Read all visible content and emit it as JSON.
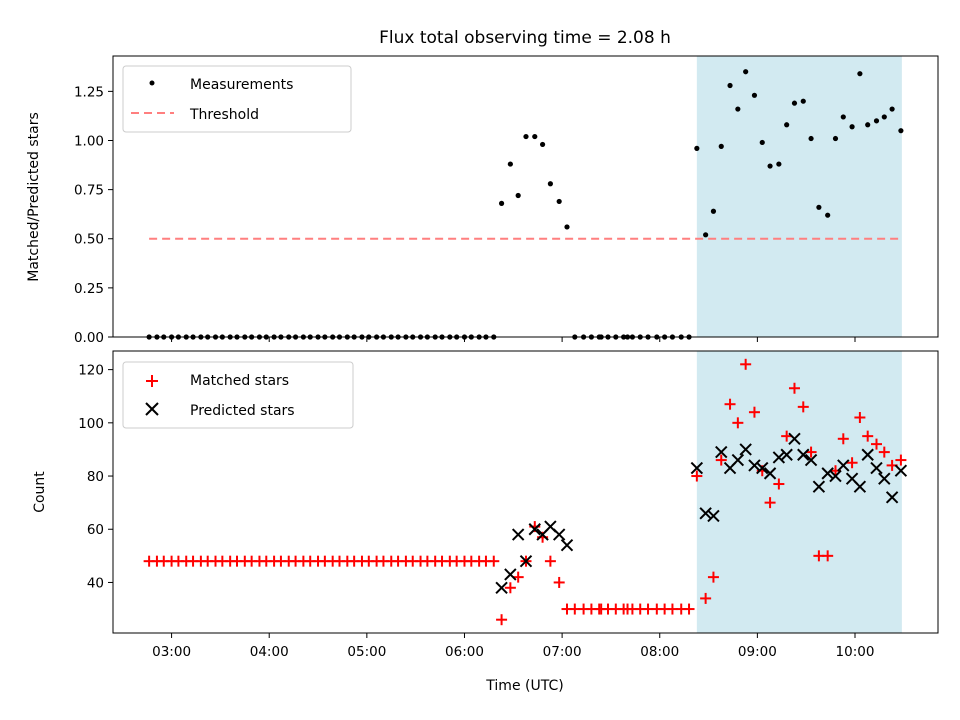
{
  "title": "Flux total observing time = 2.08 h",
  "colors": {
    "shade": "#add8e6",
    "threshold": "#ff7f7f",
    "matched": "#ff0000",
    "predicted": "#000000",
    "measurement": "#000000"
  },
  "chart_data": [
    {
      "type": "scatter",
      "ylabel": "Matched/Predicted stars",
      "xlim": [
        2.4,
        10.85
      ],
      "ylim": [
        0,
        1.43
      ],
      "yticks": [
        0.0,
        0.25,
        0.5,
        0.75,
        1.0,
        1.25
      ],
      "ytick_labels": [
        "0.00",
        "0.25",
        "0.50",
        "0.75",
        "1.00",
        "1.25"
      ],
      "shaded_region": [
        8.38,
        10.48
      ],
      "legend": {
        "position": "top-left",
        "entries": [
          "Measurements",
          "Threshold"
        ]
      },
      "threshold": {
        "name": "Threshold",
        "value": 0.5,
        "x_range": [
          2.77,
          10.48
        ]
      },
      "series": [
        {
          "name": "Measurements",
          "points": [
            [
              2.77,
              0
            ],
            [
              2.85,
              0
            ],
            [
              2.92,
              0
            ],
            [
              3.0,
              0
            ],
            [
              3.07,
              0
            ],
            [
              3.15,
              0
            ],
            [
              3.22,
              0
            ],
            [
              3.3,
              0
            ],
            [
              3.37,
              0
            ],
            [
              3.45,
              0
            ],
            [
              3.52,
              0
            ],
            [
              3.6,
              0
            ],
            [
              3.67,
              0
            ],
            [
              3.75,
              0
            ],
            [
              3.82,
              0
            ],
            [
              3.9,
              0
            ],
            [
              3.97,
              0
            ],
            [
              4.05,
              0
            ],
            [
              4.12,
              0
            ],
            [
              4.2,
              0
            ],
            [
              4.27,
              0
            ],
            [
              4.35,
              0
            ],
            [
              4.42,
              0
            ],
            [
              4.5,
              0
            ],
            [
              4.57,
              0
            ],
            [
              4.65,
              0
            ],
            [
              4.72,
              0
            ],
            [
              4.8,
              0
            ],
            [
              4.87,
              0
            ],
            [
              4.95,
              0
            ],
            [
              5.02,
              0
            ],
            [
              5.1,
              0
            ],
            [
              5.17,
              0
            ],
            [
              5.25,
              0
            ],
            [
              5.32,
              0
            ],
            [
              5.4,
              0
            ],
            [
              5.47,
              0
            ],
            [
              5.55,
              0
            ],
            [
              5.62,
              0
            ],
            [
              5.7,
              0
            ],
            [
              5.77,
              0
            ],
            [
              5.85,
              0
            ],
            [
              5.92,
              0
            ],
            [
              6.0,
              0
            ],
            [
              6.07,
              0
            ],
            [
              6.15,
              0
            ],
            [
              6.22,
              0
            ],
            [
              6.3,
              0
            ],
            [
              6.38,
              0.68
            ],
            [
              6.47,
              0.88
            ],
            [
              6.55,
              0.72
            ],
            [
              6.63,
              1.02
            ],
            [
              6.72,
              1.02
            ],
            [
              6.8,
              0.98
            ],
            [
              6.88,
              0.78
            ],
            [
              6.97,
              0.69
            ],
            [
              7.05,
              0.56
            ],
            [
              7.13,
              0
            ],
            [
              7.22,
              0
            ],
            [
              7.3,
              0
            ],
            [
              7.38,
              0
            ],
            [
              7.4,
              0
            ],
            [
              7.47,
              0
            ],
            [
              7.55,
              0
            ],
            [
              7.63,
              0
            ],
            [
              7.67,
              0
            ],
            [
              7.72,
              0
            ],
            [
              7.8,
              0
            ],
            [
              7.88,
              0
            ],
            [
              7.97,
              0
            ],
            [
              8.05,
              0
            ],
            [
              8.13,
              0
            ],
            [
              8.22,
              0
            ],
            [
              8.3,
              0
            ],
            [
              8.38,
              0.96
            ],
            [
              8.47,
              0.52
            ],
            [
              8.55,
              0.64
            ],
            [
              8.63,
              0.97
            ],
            [
              8.72,
              1.28
            ],
            [
              8.8,
              1.16
            ],
            [
              8.88,
              1.35
            ],
            [
              8.97,
              1.23
            ],
            [
              9.05,
              0.99
            ],
            [
              9.13,
              0.87
            ],
            [
              9.22,
              0.88
            ],
            [
              9.3,
              1.08
            ],
            [
              9.38,
              1.19
            ],
            [
              9.47,
              1.2
            ],
            [
              9.55,
              1.01
            ],
            [
              9.63,
              0.66
            ],
            [
              9.72,
              0.62
            ],
            [
              9.8,
              1.01
            ],
            [
              9.88,
              1.12
            ],
            [
              9.97,
              1.07
            ],
            [
              10.05,
              1.34
            ],
            [
              10.13,
              1.08
            ],
            [
              10.22,
              1.1
            ],
            [
              10.3,
              1.12
            ],
            [
              10.38,
              1.16
            ],
            [
              10.47,
              1.05
            ]
          ]
        }
      ]
    },
    {
      "type": "scatter",
      "xlabel": "Time (UTC)",
      "ylabel": "Count",
      "xlim": [
        2.4,
        10.85
      ],
      "ylim": [
        21,
        127
      ],
      "xticks": [
        3,
        4,
        5,
        6,
        7,
        8,
        9,
        10
      ],
      "xtick_labels": [
        "03:00",
        "04:00",
        "05:00",
        "06:00",
        "07:00",
        "08:00",
        "09:00",
        "10:00"
      ],
      "yticks": [
        40,
        60,
        80,
        100,
        120
      ],
      "ytick_labels": [
        "40",
        "60",
        "80",
        "100",
        "120"
      ],
      "shaded_region": [
        8.38,
        10.48
      ],
      "legend": {
        "position": "top-left",
        "entries": [
          "Matched stars",
          "Predicted stars"
        ]
      },
      "series": [
        {
          "name": "Matched stars",
          "points": [
            [
              2.77,
              48
            ],
            [
              2.85,
              48
            ],
            [
              2.92,
              48
            ],
            [
              3.0,
              48
            ],
            [
              3.07,
              48
            ],
            [
              3.15,
              48
            ],
            [
              3.22,
              48
            ],
            [
              3.3,
              48
            ],
            [
              3.37,
              48
            ],
            [
              3.45,
              48
            ],
            [
              3.52,
              48
            ],
            [
              3.6,
              48
            ],
            [
              3.67,
              48
            ],
            [
              3.75,
              48
            ],
            [
              3.82,
              48
            ],
            [
              3.9,
              48
            ],
            [
              3.97,
              48
            ],
            [
              4.05,
              48
            ],
            [
              4.12,
              48
            ],
            [
              4.2,
              48
            ],
            [
              4.27,
              48
            ],
            [
              4.35,
              48
            ],
            [
              4.42,
              48
            ],
            [
              4.5,
              48
            ],
            [
              4.57,
              48
            ],
            [
              4.65,
              48
            ],
            [
              4.72,
              48
            ],
            [
              4.8,
              48
            ],
            [
              4.87,
              48
            ],
            [
              4.95,
              48
            ],
            [
              5.02,
              48
            ],
            [
              5.1,
              48
            ],
            [
              5.17,
              48
            ],
            [
              5.25,
              48
            ],
            [
              5.32,
              48
            ],
            [
              5.4,
              48
            ],
            [
              5.47,
              48
            ],
            [
              5.55,
              48
            ],
            [
              5.62,
              48
            ],
            [
              5.7,
              48
            ],
            [
              5.77,
              48
            ],
            [
              5.85,
              48
            ],
            [
              5.92,
              48
            ],
            [
              6.0,
              48
            ],
            [
              6.07,
              48
            ],
            [
              6.15,
              48
            ],
            [
              6.22,
              48
            ],
            [
              6.3,
              48
            ],
            [
              6.38,
              26
            ],
            [
              6.47,
              38
            ],
            [
              6.55,
              42
            ],
            [
              6.63,
              48
            ],
            [
              6.72,
              61
            ],
            [
              6.8,
              57
            ],
            [
              6.88,
              48
            ],
            [
              6.97,
              40
            ],
            [
              7.05,
              30
            ],
            [
              7.13,
              30
            ],
            [
              7.22,
              30
            ],
            [
              7.3,
              30
            ],
            [
              7.38,
              30
            ],
            [
              7.4,
              30
            ],
            [
              7.47,
              30
            ],
            [
              7.55,
              30
            ],
            [
              7.63,
              30
            ],
            [
              7.67,
              30
            ],
            [
              7.72,
              30
            ],
            [
              7.8,
              30
            ],
            [
              7.88,
              30
            ],
            [
              7.97,
              30
            ],
            [
              8.05,
              30
            ],
            [
              8.13,
              30
            ],
            [
              8.22,
              30
            ],
            [
              8.3,
              30
            ],
            [
              8.38,
              80
            ],
            [
              8.47,
              34
            ],
            [
              8.55,
              42
            ],
            [
              8.63,
              86
            ],
            [
              8.72,
              107
            ],
            [
              8.8,
              100
            ],
            [
              8.88,
              122
            ],
            [
              8.97,
              104
            ],
            [
              9.05,
              82
            ],
            [
              9.13,
              70
            ],
            [
              9.22,
              77
            ],
            [
              9.3,
              95
            ],
            [
              9.38,
              113
            ],
            [
              9.47,
              106
            ],
            [
              9.55,
              89
            ],
            [
              9.63,
              50
            ],
            [
              9.72,
              50
            ],
            [
              9.8,
              82
            ],
            [
              9.88,
              94
            ],
            [
              9.97,
              85
            ],
            [
              10.05,
              102
            ],
            [
              10.13,
              95
            ],
            [
              10.22,
              92
            ],
            [
              10.3,
              89
            ],
            [
              10.38,
              84
            ],
            [
              10.47,
              86
            ]
          ]
        },
        {
          "name": "Predicted stars",
          "points": [
            [
              6.38,
              38
            ],
            [
              6.47,
              43
            ],
            [
              6.55,
              58
            ],
            [
              6.63,
              48
            ],
            [
              6.72,
              60
            ],
            [
              6.8,
              58
            ],
            [
              6.88,
              61
            ],
            [
              6.97,
              58
            ],
            [
              7.05,
              54
            ],
            [
              8.38,
              83
            ],
            [
              8.47,
              66
            ],
            [
              8.55,
              65
            ],
            [
              8.63,
              89
            ],
            [
              8.72,
              83
            ],
            [
              8.8,
              86
            ],
            [
              8.88,
              90
            ],
            [
              8.97,
              84
            ],
            [
              9.05,
              83
            ],
            [
              9.13,
              81
            ],
            [
              9.22,
              87
            ],
            [
              9.3,
              88
            ],
            [
              9.38,
              94
            ],
            [
              9.47,
              88
            ],
            [
              9.55,
              86
            ],
            [
              9.63,
              76
            ],
            [
              9.72,
              81
            ],
            [
              9.8,
              80
            ],
            [
              9.88,
              84
            ],
            [
              9.97,
              79
            ],
            [
              10.05,
              76
            ],
            [
              10.13,
              88
            ],
            [
              10.22,
              83
            ],
            [
              10.3,
              79
            ],
            [
              10.38,
              72
            ],
            [
              10.47,
              82
            ]
          ]
        }
      ]
    }
  ]
}
